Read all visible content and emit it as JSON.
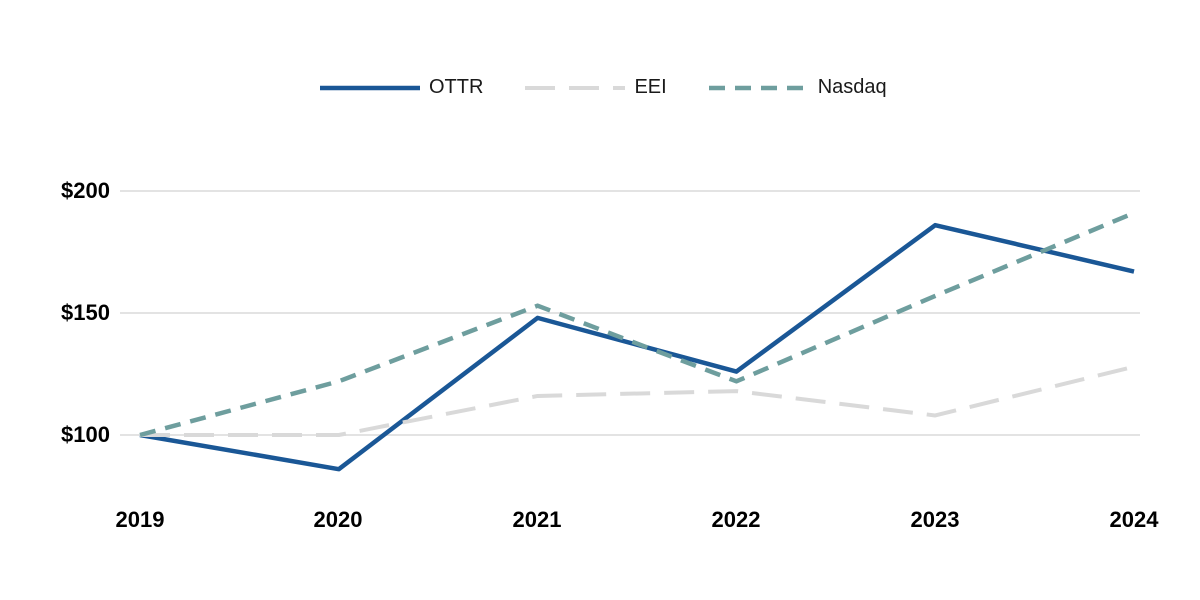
{
  "chart_data": {
    "type": "line",
    "title": "",
    "categories": [
      "2019",
      "2020",
      "2021",
      "2022",
      "2023",
      "2024"
    ],
    "series": [
      {
        "name": "OTTR",
        "color": "#1A5796",
        "line_style": "solid",
        "values": [
          100,
          86,
          148,
          126,
          186,
          167
        ]
      },
      {
        "name": "EEI",
        "color": "#D9D9D9",
        "line_style": "long-dash",
        "values": [
          100,
          100,
          116,
          118,
          108,
          128
        ]
      },
      {
        "name": "Nasdaq",
        "color": "#6E9E9E",
        "line_style": "dash",
        "values": [
          100,
          122,
          153,
          122,
          157,
          191
        ]
      }
    ],
    "ytick_labels": [
      "$100",
      "$150",
      "$200"
    ],
    "ytick_values": [
      100,
      150,
      200
    ],
    "ylim": [
      80,
      210
    ],
    "grid": "horizontal",
    "gridline_color": "#e3e3e3",
    "legend_position": "top",
    "xlabel": "",
    "ylabel": ""
  }
}
